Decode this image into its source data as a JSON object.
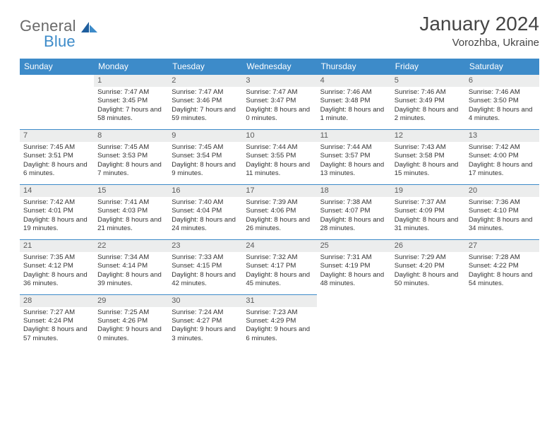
{
  "brand": {
    "a": "General",
    "b": "Blue"
  },
  "title": "January 2024",
  "subtitle": "Vorozhba, Ukraine",
  "colors": {
    "accent": "#3d8bc9",
    "headbg": "#3d8bc9",
    "daybar": "#eceded",
    "text": "#333333"
  },
  "dayNames": [
    "Sunday",
    "Monday",
    "Tuesday",
    "Wednesday",
    "Thursday",
    "Friday",
    "Saturday"
  ],
  "weeks": [
    [
      {
        "n": "",
        "t": ""
      },
      {
        "n": "1",
        "t": "Sunrise: 7:47 AM\nSunset: 3:45 PM\nDaylight: 7 hours and 58 minutes."
      },
      {
        "n": "2",
        "t": "Sunrise: 7:47 AM\nSunset: 3:46 PM\nDaylight: 7 hours and 59 minutes."
      },
      {
        "n": "3",
        "t": "Sunrise: 7:47 AM\nSunset: 3:47 PM\nDaylight: 8 hours and 0 minutes."
      },
      {
        "n": "4",
        "t": "Sunrise: 7:46 AM\nSunset: 3:48 PM\nDaylight: 8 hours and 1 minute."
      },
      {
        "n": "5",
        "t": "Sunrise: 7:46 AM\nSunset: 3:49 PM\nDaylight: 8 hours and 2 minutes."
      },
      {
        "n": "6",
        "t": "Sunrise: 7:46 AM\nSunset: 3:50 PM\nDaylight: 8 hours and 4 minutes."
      }
    ],
    [
      {
        "n": "7",
        "t": "Sunrise: 7:45 AM\nSunset: 3:51 PM\nDaylight: 8 hours and 6 minutes."
      },
      {
        "n": "8",
        "t": "Sunrise: 7:45 AM\nSunset: 3:53 PM\nDaylight: 8 hours and 7 minutes."
      },
      {
        "n": "9",
        "t": "Sunrise: 7:45 AM\nSunset: 3:54 PM\nDaylight: 8 hours and 9 minutes."
      },
      {
        "n": "10",
        "t": "Sunrise: 7:44 AM\nSunset: 3:55 PM\nDaylight: 8 hours and 11 minutes."
      },
      {
        "n": "11",
        "t": "Sunrise: 7:44 AM\nSunset: 3:57 PM\nDaylight: 8 hours and 13 minutes."
      },
      {
        "n": "12",
        "t": "Sunrise: 7:43 AM\nSunset: 3:58 PM\nDaylight: 8 hours and 15 minutes."
      },
      {
        "n": "13",
        "t": "Sunrise: 7:42 AM\nSunset: 4:00 PM\nDaylight: 8 hours and 17 minutes."
      }
    ],
    [
      {
        "n": "14",
        "t": "Sunrise: 7:42 AM\nSunset: 4:01 PM\nDaylight: 8 hours and 19 minutes."
      },
      {
        "n": "15",
        "t": "Sunrise: 7:41 AM\nSunset: 4:03 PM\nDaylight: 8 hours and 21 minutes."
      },
      {
        "n": "16",
        "t": "Sunrise: 7:40 AM\nSunset: 4:04 PM\nDaylight: 8 hours and 24 minutes."
      },
      {
        "n": "17",
        "t": "Sunrise: 7:39 AM\nSunset: 4:06 PM\nDaylight: 8 hours and 26 minutes."
      },
      {
        "n": "18",
        "t": "Sunrise: 7:38 AM\nSunset: 4:07 PM\nDaylight: 8 hours and 28 minutes."
      },
      {
        "n": "19",
        "t": "Sunrise: 7:37 AM\nSunset: 4:09 PM\nDaylight: 8 hours and 31 minutes."
      },
      {
        "n": "20",
        "t": "Sunrise: 7:36 AM\nSunset: 4:10 PM\nDaylight: 8 hours and 34 minutes."
      }
    ],
    [
      {
        "n": "21",
        "t": "Sunrise: 7:35 AM\nSunset: 4:12 PM\nDaylight: 8 hours and 36 minutes."
      },
      {
        "n": "22",
        "t": "Sunrise: 7:34 AM\nSunset: 4:14 PM\nDaylight: 8 hours and 39 minutes."
      },
      {
        "n": "23",
        "t": "Sunrise: 7:33 AM\nSunset: 4:15 PM\nDaylight: 8 hours and 42 minutes."
      },
      {
        "n": "24",
        "t": "Sunrise: 7:32 AM\nSunset: 4:17 PM\nDaylight: 8 hours and 45 minutes."
      },
      {
        "n": "25",
        "t": "Sunrise: 7:31 AM\nSunset: 4:19 PM\nDaylight: 8 hours and 48 minutes."
      },
      {
        "n": "26",
        "t": "Sunrise: 7:29 AM\nSunset: 4:20 PM\nDaylight: 8 hours and 50 minutes."
      },
      {
        "n": "27",
        "t": "Sunrise: 7:28 AM\nSunset: 4:22 PM\nDaylight: 8 hours and 54 minutes."
      }
    ],
    [
      {
        "n": "28",
        "t": "Sunrise: 7:27 AM\nSunset: 4:24 PM\nDaylight: 8 hours and 57 minutes."
      },
      {
        "n": "29",
        "t": "Sunrise: 7:25 AM\nSunset: 4:26 PM\nDaylight: 9 hours and 0 minutes."
      },
      {
        "n": "30",
        "t": "Sunrise: 7:24 AM\nSunset: 4:27 PM\nDaylight: 9 hours and 3 minutes."
      },
      {
        "n": "31",
        "t": "Sunrise: 7:23 AM\nSunset: 4:29 PM\nDaylight: 9 hours and 6 minutes."
      },
      {
        "n": "",
        "t": ""
      },
      {
        "n": "",
        "t": ""
      },
      {
        "n": "",
        "t": ""
      }
    ]
  ]
}
